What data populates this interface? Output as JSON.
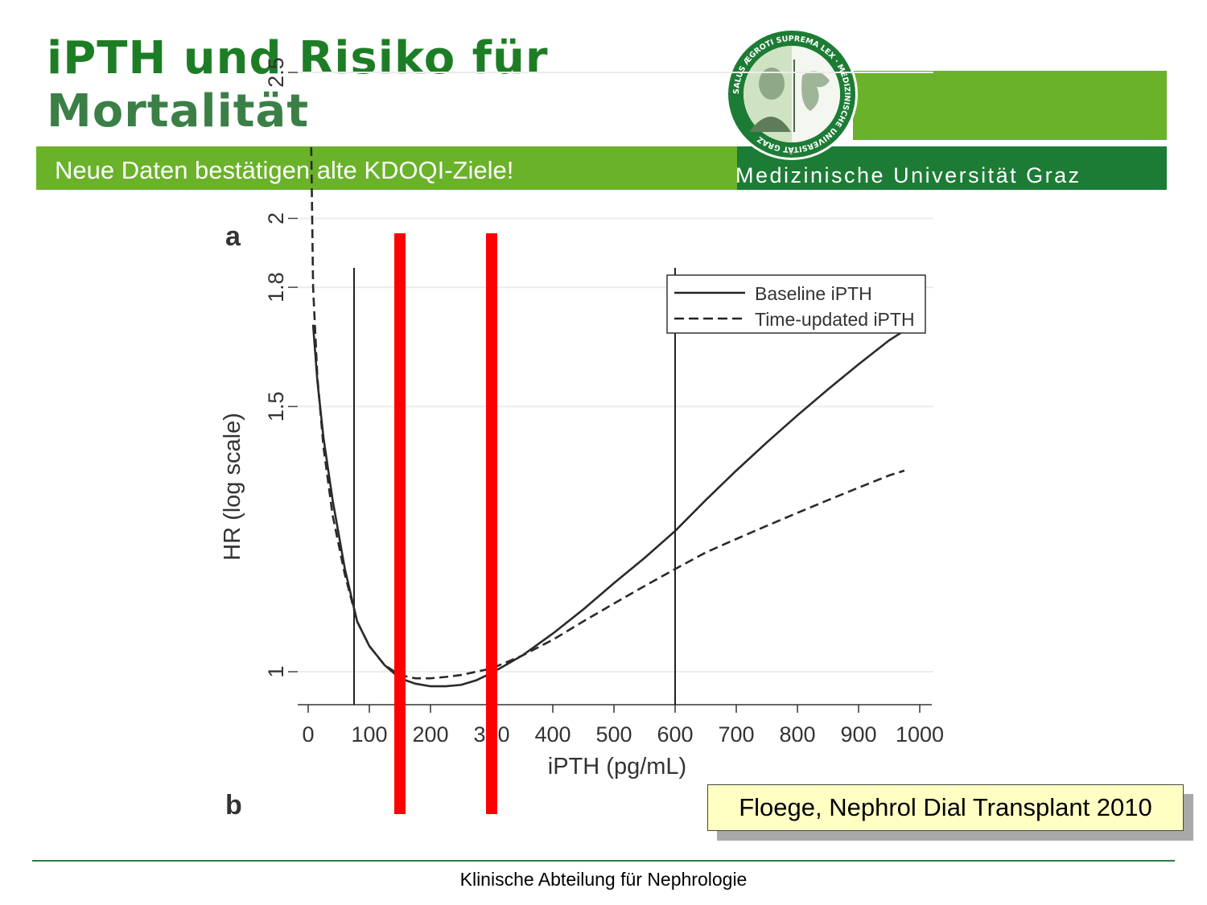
{
  "header": {
    "title_line1": "iPTH und Risiko für",
    "title_line2": "Mortalität",
    "subtitle": "Neue Daten bestätigen alte KDOQI-Ziele!",
    "university": "Medizinische Universität Graz",
    "seal_text": "SALUS ÆGROTI SUPREMA LEX · MEDIZINISCHE UNIVERSITÄT GRAZ"
  },
  "colors": {
    "light_green": "#6ab22a",
    "dark_green": "#1c7c35",
    "title_green": "#1d7d25",
    "highlight_red": "#ff0000",
    "citation_bg": "#ffffc4"
  },
  "chart_data": {
    "type": "line",
    "panel_label": "a",
    "next_panel_label": "b",
    "xlabel": "iPTH (pg/mL)",
    "ylabel": "HR (log scale)",
    "x_ticks": [
      0,
      100,
      200,
      300,
      400,
      500,
      600,
      700,
      800,
      900,
      1000
    ],
    "y_ticks": [
      1,
      1.5,
      1.8,
      2,
      2.5
    ],
    "y_scale": "log",
    "xlim": [
      -15,
      1020
    ],
    "ylim": [
      0.95,
      2.5
    ],
    "grid": "horizontal",
    "legend_position": "top-right",
    "reference_lines_x": [
      75,
      600
    ],
    "highlight_lines_x": [
      150,
      300
    ],
    "series": [
      {
        "name": "Baseline iPTH",
        "style": "solid",
        "x": [
          8,
          15,
          25,
          40,
          60,
          80,
          100,
          125,
          150,
          175,
          200,
          225,
          250,
          275,
          300,
          350,
          400,
          450,
          500,
          550,
          600,
          650,
          700,
          750,
          800,
          850,
          900,
          950,
          1000
        ],
        "y": [
          1.7,
          1.56,
          1.43,
          1.3,
          1.17,
          1.08,
          1.04,
          1.01,
          0.99,
          0.982,
          0.978,
          0.978,
          0.98,
          0.987,
          0.998,
          1.025,
          1.06,
          1.1,
          1.145,
          1.19,
          1.24,
          1.3,
          1.36,
          1.42,
          1.48,
          1.54,
          1.6,
          1.66,
          1.71
        ]
      },
      {
        "name": "Time-updated iPTH",
        "style": "dashed",
        "x": [
          5,
          8,
          15,
          25,
          40,
          60,
          80,
          100,
          125,
          150,
          175,
          200,
          225,
          250,
          275,
          300,
          350,
          400,
          450,
          500,
          550,
          600,
          650,
          700,
          750,
          800,
          850,
          900,
          950,
          975
        ],
        "y": [
          2.23,
          1.8,
          1.57,
          1.41,
          1.27,
          1.16,
          1.08,
          1.04,
          1.01,
          0.995,
          0.99,
          0.99,
          0.992,
          0.995,
          1.0,
          1.005,
          1.025,
          1.05,
          1.08,
          1.11,
          1.14,
          1.17,
          1.2,
          1.225,
          1.25,
          1.275,
          1.3,
          1.325,
          1.35,
          1.36
        ]
      }
    ]
  },
  "citation": "Floege, Nephrol Dial Transplant 2010",
  "footer": "Klinische Abteilung für Nephrologie"
}
